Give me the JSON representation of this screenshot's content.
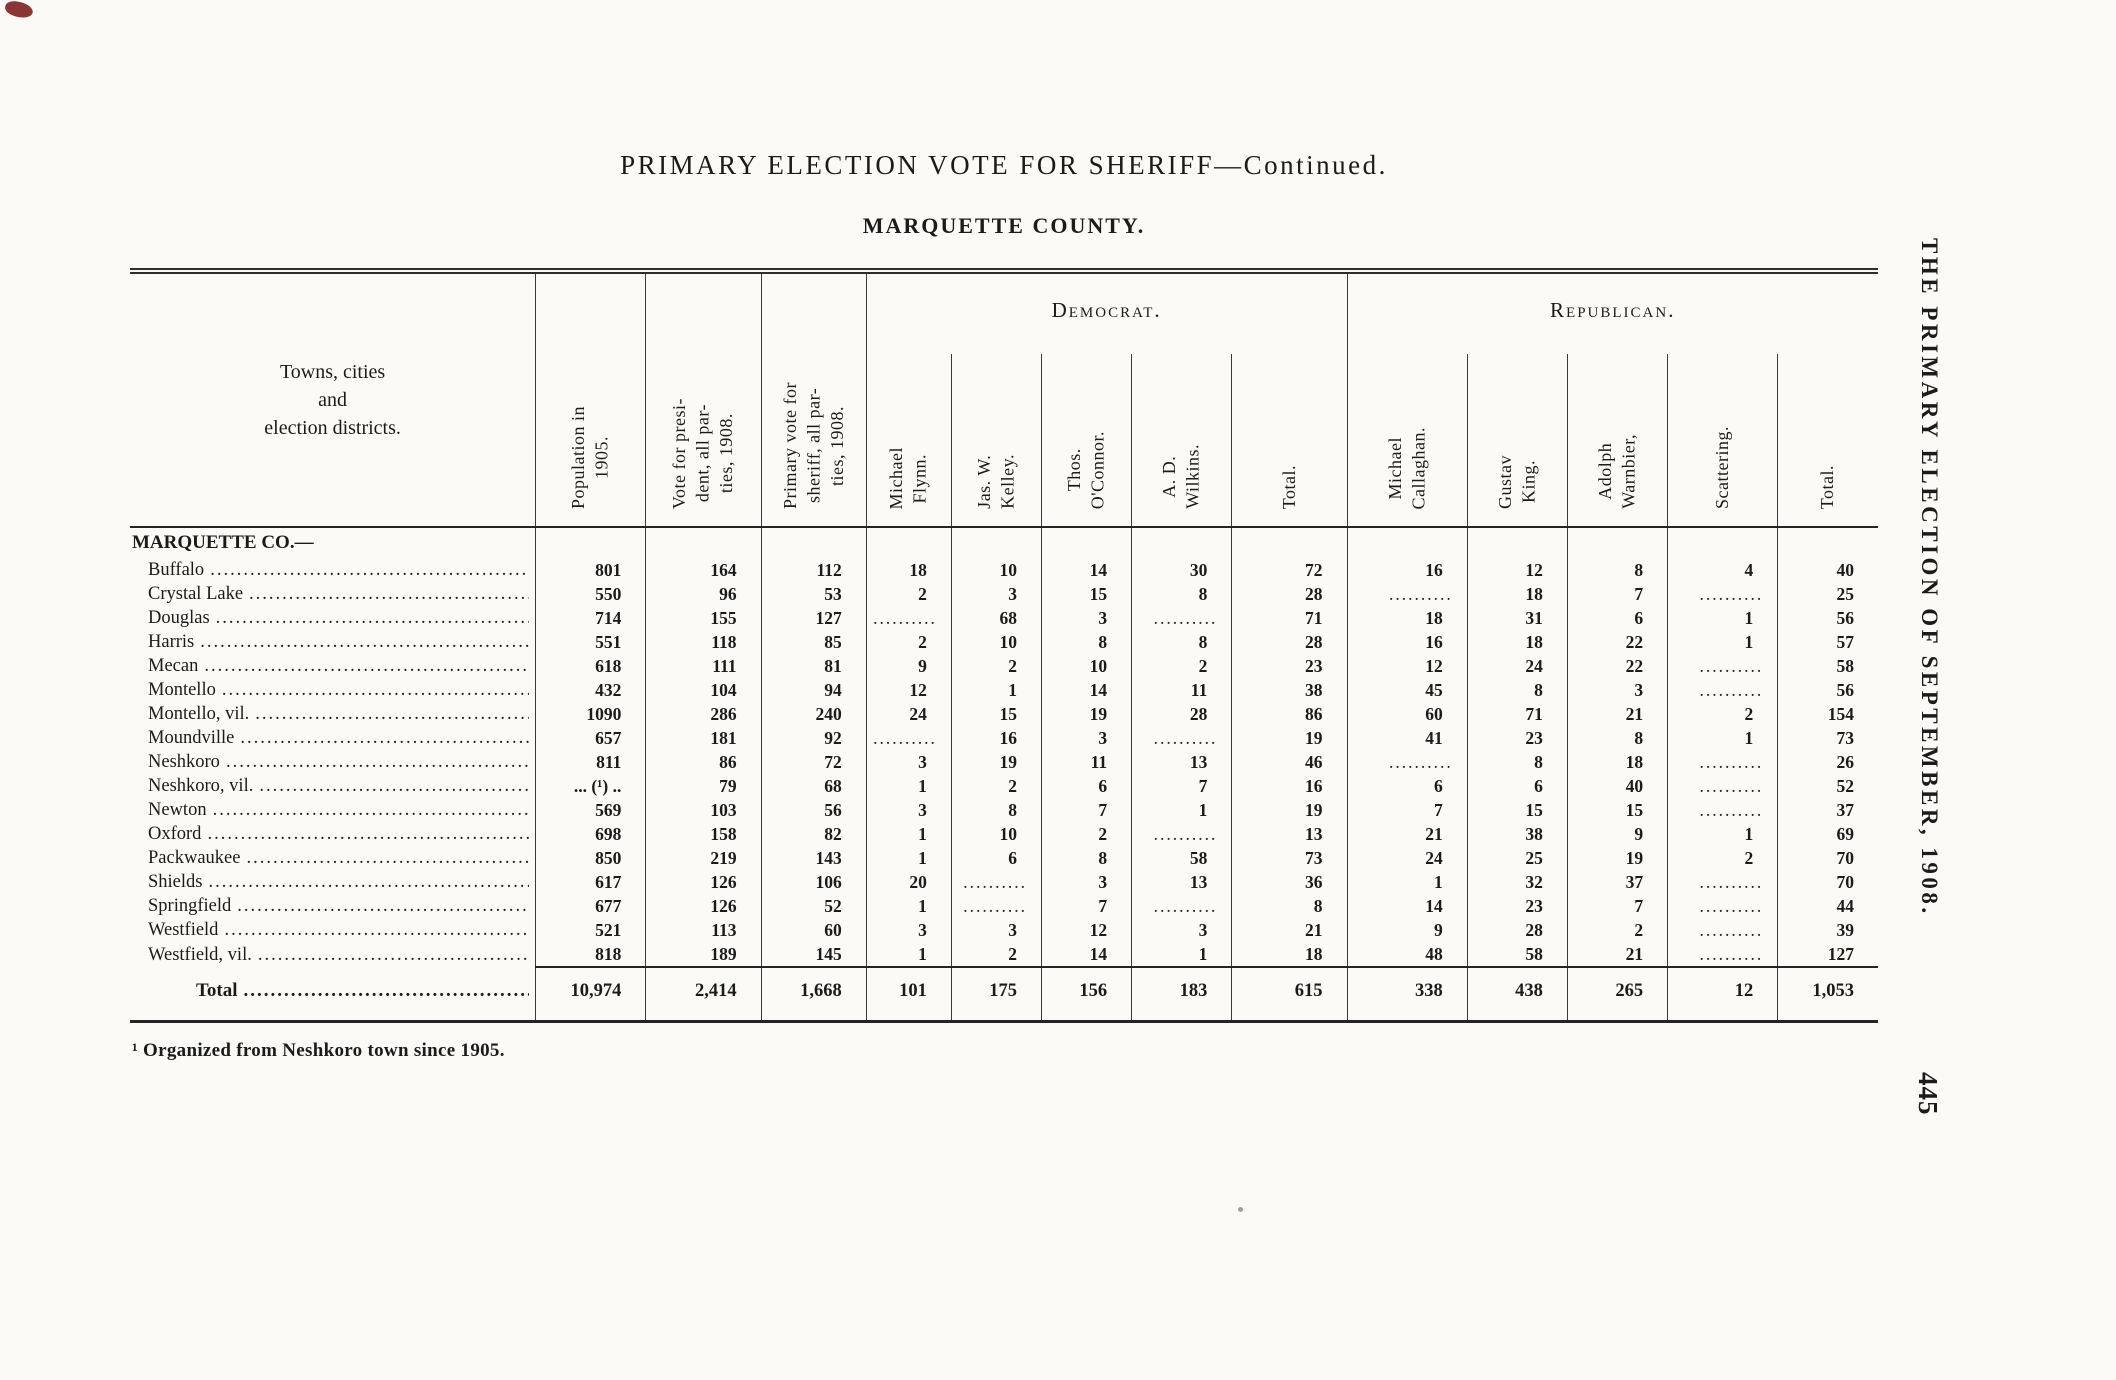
{
  "page": {
    "title": "PRIMARY ELECTION VOTE FOR SHERIFF—Continued.",
    "subtitle": "MARQUETTE COUNTY.",
    "footnote": "¹ Organized from Neshkoro town since 1905.",
    "side_title": "THE PRIMARY ELECTION OF SEPTEMBER, 1908.",
    "page_number": "445"
  },
  "table": {
    "towns_header": "Towns, cities\nand\nelection districts.",
    "stat_headers": [
      "Population in\n1905.",
      "Vote for presi-\ndent, all par-\nties, 1908.",
      "Primary vote for\nsheriff, all par-\nties, 1908."
    ],
    "democrat_label": "Democrat.",
    "republican_label": "Republican.",
    "democrat_headers": [
      "Michael\nFlynn.",
      "Jas. W.\nKelley.",
      "Thos.\nO'Connor.",
      "A. D.\nWilkins.",
      "Total."
    ],
    "republican_headers": [
      "Michael\nCallaghan.",
      "Gustav\nKing.",
      "Adolph\nWarnbier,",
      "Scattering.",
      "Total."
    ],
    "section_label": "MARQUETTE CO.—",
    "rows": [
      {
        "name": "Buffalo",
        "values": [
          "801",
          "164",
          "112",
          "18",
          "10",
          "14",
          "30",
          "72",
          "16",
          "12",
          "8",
          "4",
          "40"
        ]
      },
      {
        "name": "Crystal Lake",
        "values": [
          "550",
          "96",
          "53",
          "2",
          "3",
          "15",
          "8",
          "28",
          "..........",
          "18",
          "7",
          "..........",
          "25"
        ]
      },
      {
        "name": "Douglas",
        "values": [
          "714",
          "155",
          "127",
          "..........",
          "68",
          "3",
          "..........",
          "71",
          "18",
          "31",
          "6",
          "1",
          "56"
        ]
      },
      {
        "name": "Harris",
        "values": [
          "551",
          "118",
          "85",
          "2",
          "10",
          "8",
          "8",
          "28",
          "16",
          "18",
          "22",
          "1",
          "57"
        ]
      },
      {
        "name": "Mecan",
        "values": [
          "618",
          "111",
          "81",
          "9",
          "2",
          "10",
          "2",
          "23",
          "12",
          "24",
          "22",
          "..........",
          "58"
        ]
      },
      {
        "name": "Montello",
        "values": [
          "432",
          "104",
          "94",
          "12",
          "1",
          "14",
          "11",
          "38",
          "45",
          "8",
          "3",
          "..........",
          "56"
        ]
      },
      {
        "name": "Montello, vil.",
        "values": [
          "1090",
          "286",
          "240",
          "24",
          "15",
          "19",
          "28",
          "86",
          "60",
          "71",
          "21",
          "2",
          "154"
        ]
      },
      {
        "name": "Moundville",
        "values": [
          "657",
          "181",
          "92",
          "..........",
          "16",
          "3",
          "..........",
          "19",
          "41",
          "23",
          "8",
          "1",
          "73"
        ]
      },
      {
        "name": "Neshkoro",
        "values": [
          "811",
          "86",
          "72",
          "3",
          "19",
          "11",
          "13",
          "46",
          "..........",
          "8",
          "18",
          "..........",
          "26"
        ]
      },
      {
        "name": "Neshkoro, vil.",
        "values": [
          "... (¹) ..",
          "79",
          "68",
          "1",
          "2",
          "6",
          "7",
          "16",
          "6",
          "6",
          "40",
          "..........",
          "52"
        ]
      },
      {
        "name": "Newton",
        "values": [
          "569",
          "103",
          "56",
          "3",
          "8",
          "7",
          "1",
          "19",
          "7",
          "15",
          "15",
          "..........",
          "37"
        ]
      },
      {
        "name": "Oxford",
        "values": [
          "698",
          "158",
          "82",
          "1",
          "10",
          "2",
          "..........",
          "13",
          "21",
          "38",
          "9",
          "1",
          "69"
        ]
      },
      {
        "name": "Packwaukee",
        "values": [
          "850",
          "219",
          "143",
          "1",
          "6",
          "8",
          "58",
          "73",
          "24",
          "25",
          "19",
          "2",
          "70"
        ]
      },
      {
        "name": "Shields",
        "values": [
          "617",
          "126",
          "106",
          "20",
          "..........",
          "3",
          "13",
          "36",
          "1",
          "32",
          "37",
          "..........",
          "70"
        ]
      },
      {
        "name": "Springfield",
        "values": [
          "677",
          "126",
          "52",
          "1",
          "..........",
          "7",
          "..........",
          "8",
          "14",
          "23",
          "7",
          "..........",
          "44"
        ]
      },
      {
        "name": "Westfield",
        "values": [
          "521",
          "113",
          "60",
          "3",
          "3",
          "12",
          "3",
          "21",
          "9",
          "28",
          "2",
          "..........",
          "39"
        ]
      },
      {
        "name": "Westfield, vil.",
        "values": [
          "818",
          "189",
          "145",
          "1",
          "2",
          "14",
          "1",
          "18",
          "48",
          "58",
          "21",
          "..........",
          "127"
        ]
      }
    ],
    "total": {
      "name": "Total",
      "values": [
        "10,974",
        "2,414",
        "1,668",
        "101",
        "175",
        "156",
        "183",
        "615",
        "338",
        "438",
        "265",
        "12",
        "1,053"
      ]
    }
  }
}
